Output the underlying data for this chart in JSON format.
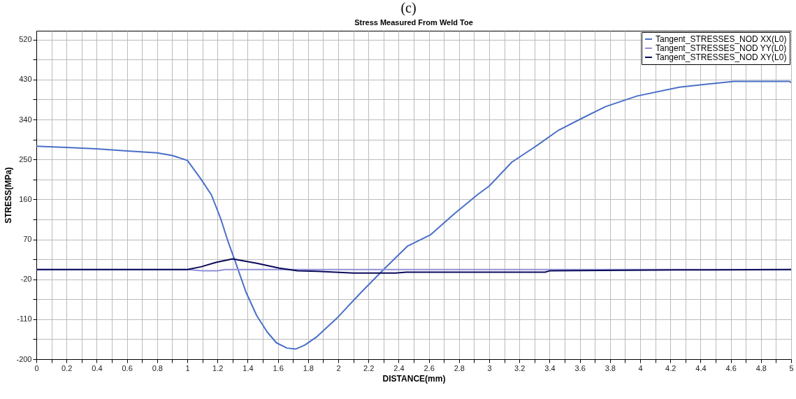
{
  "chart_data": {
    "type": "line",
    "title": "Stress Measured From Weld Toe",
    "annotations": [
      "(c)"
    ],
    "xlabel": "DISTANCE(mm)",
    "ylabel": "STRESS(MPa)",
    "xlim": [
      0,
      5
    ],
    "ylim": [
      -200,
      540
    ],
    "xticks": [
      0,
      {
        "value": 0.1,
        "label": null
      },
      0.2,
      {
        "value": 0.3,
        "label": null
      },
      0.4,
      {
        "value": 0.5,
        "label": null
      },
      0.6,
      {
        "value": 0.7,
        "label": null
      },
      0.8,
      {
        "value": 0.9,
        "label": null
      },
      1,
      {
        "value": 1.1,
        "label": null
      },
      1.2,
      {
        "value": 1.3,
        "label": null
      },
      1.4,
      {
        "value": 1.5,
        "label": null
      },
      1.6,
      {
        "value": 1.7,
        "label": null
      },
      1.8,
      {
        "value": 1.9,
        "label": null
      },
      2,
      {
        "value": 2.1,
        "label": null
      },
      2.2,
      {
        "value": 2.3,
        "label": null
      },
      2.4,
      {
        "value": 2.5,
        "label": null
      },
      2.6,
      {
        "value": 2.7,
        "label": null
      },
      2.8,
      {
        "value": 2.9,
        "label": null
      },
      3,
      {
        "value": 3.1,
        "label": null
      },
      3.2,
      {
        "value": 3.3,
        "label": null
      },
      3.4,
      {
        "value": 3.5,
        "label": null
      },
      3.6,
      {
        "value": 3.7,
        "label": null
      },
      3.8,
      {
        "value": 3.9,
        "label": null
      },
      4,
      {
        "value": 4.1,
        "label": null
      },
      4.2,
      {
        "value": 4.3,
        "label": null
      },
      4.4,
      {
        "value": 4.5,
        "label": null
      },
      4.6,
      {
        "value": 4.7,
        "label": null
      },
      4.8,
      {
        "value": 4.9,
        "label": null
      },
      5
    ],
    "yticks": [
      -200,
      {
        "value": -155,
        "label": null
      },
      -110,
      {
        "value": -65,
        "label": null
      },
      -20,
      {
        "value": 25,
        "label": null
      },
      70,
      {
        "value": 115,
        "label": null
      },
      160,
      {
        "value": 205,
        "label": null
      },
      250,
      {
        "value": 295,
        "label": null
      },
      340,
      {
        "value": 385,
        "label": null
      },
      430,
      {
        "value": 475,
        "label": null
      },
      520
    ],
    "grid": true,
    "legend": "top right",
    "marker": "none",
    "line_style": "solid",
    "series": [
      {
        "name": "Tangent_STRESSES_NOD XX(L0)",
        "color": "#4a6fc8",
        "x": [
          0,
          0.2,
          0.4,
          0.6,
          0.8,
          0.9,
          1.0,
          1.09,
          1.16,
          1.22,
          1.27,
          1.32,
          1.39,
          1.46,
          1.53,
          1.59,
          1.66,
          1.72,
          1.78,
          1.86,
          1.99,
          2.15,
          2.3,
          2.46,
          2.61,
          2.77,
          2.92,
          3.0,
          3.15,
          3.31,
          3.46,
          3.61,
          3.77,
          3.98,
          4.26,
          4.62,
          4.99,
          5
        ],
        "values": [
          280,
          277,
          274,
          269,
          265,
          259,
          248,
          206,
          170,
          118,
          65,
          18,
          -50,
          -102,
          -139,
          -163,
          -175,
          -177,
          -168,
          -149,
          -108,
          -50,
          2,
          55,
          80,
          128,
          170,
          190,
          244,
          280,
          316,
          342,
          369,
          393,
          413,
          426,
          426,
          423
        ]
      },
      {
        "name": "Tangent_STRESSES_NOD YY(L0)",
        "color": "#9090d8",
        "x": [
          0,
          1.0,
          1.1,
          1.2,
          1.25,
          5
        ],
        "values": [
          2,
          2,
          -1,
          -1,
          2,
          2
        ]
      },
      {
        "name": "Tangent_STRESSES_NOD XY(L0)",
        "color": "#0a0a5a",
        "x": [
          0,
          1.0,
          1.09,
          1.19,
          1.3,
          1.46,
          1.61,
          1.73,
          1.86,
          2.1,
          2.38,
          2.45,
          3.37,
          3.4,
          4.25,
          5
        ],
        "values": [
          2,
          2,
          8,
          18,
          26,
          16,
          5,
          -1,
          -2,
          -6,
          -6,
          -4,
          -4,
          -1,
          1,
          2
        ]
      }
    ]
  }
}
